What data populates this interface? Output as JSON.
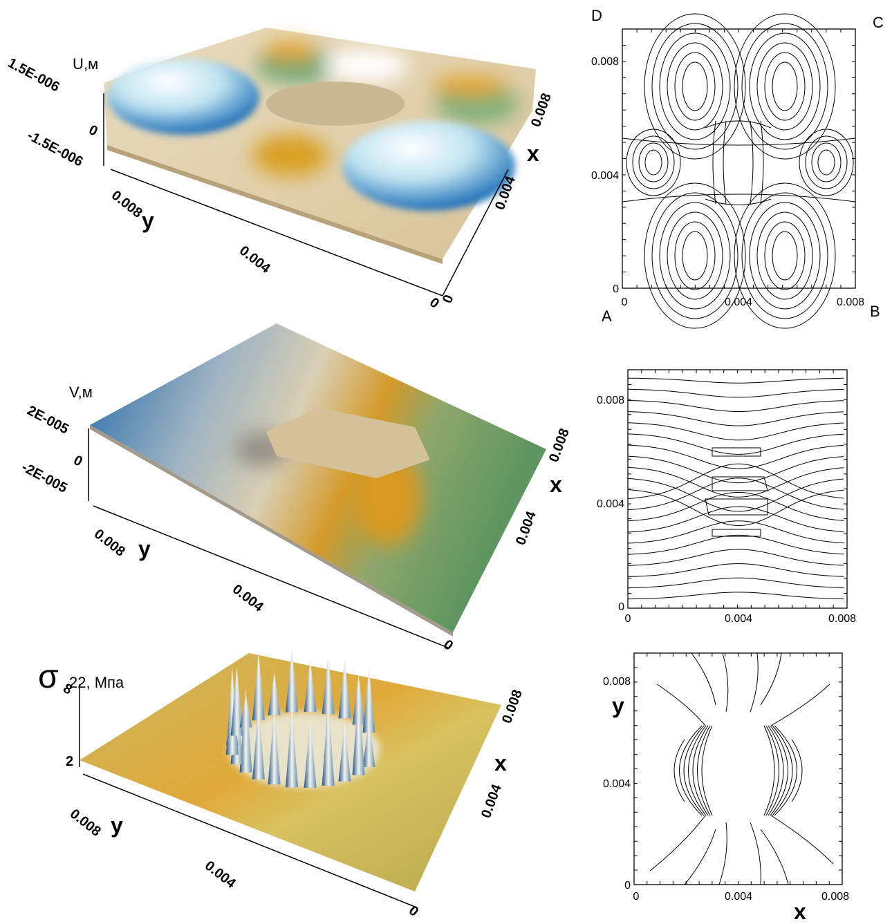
{
  "u_plot": {
    "z_label": "U,м",
    "z_ticks": [
      "1.5E-006",
      "0",
      "-1.5E-006"
    ],
    "y_axis": {
      "label": "y",
      "ticks": [
        "0.008",
        "0.004",
        "0"
      ]
    },
    "x_axis": {
      "label": "x",
      "ticks": [
        "0",
        "0.004",
        "0.008"
      ]
    }
  },
  "u_contour": {
    "corners": [
      "D",
      "C",
      "A",
      "B"
    ],
    "y_ticks": [
      "0.008",
      "0.004",
      "0"
    ],
    "x_ticks": [
      "0",
      "0.004",
      "0.008"
    ]
  },
  "v_plot": {
    "z_label": "V,м",
    "z_ticks": [
      "2E-005",
      "0",
      "-2E-005"
    ],
    "y_axis": {
      "label": "y",
      "ticks": [
        "0.008",
        "0.004",
        "0"
      ]
    },
    "x_axis": {
      "label": "x",
      "ticks": [
        "0",
        "0.004",
        "0.008"
      ]
    }
  },
  "v_contour": {
    "y_ticks": [
      "0.008",
      "0.004",
      "0"
    ],
    "x_ticks": [
      "0",
      "0.004",
      "0.008"
    ]
  },
  "s_plot": {
    "z_symbol": "σ",
    "z_label": "22, Мпа",
    "z_ticks": [
      "8",
      "2"
    ],
    "y_axis": {
      "label": "y",
      "ticks": [
        "0.008",
        "0.004",
        "0"
      ]
    },
    "x_axis": {
      "label": "x",
      "ticks": [
        "0.004",
        "0.008"
      ]
    }
  },
  "s_contour": {
    "y_label": "y",
    "x_label": "x",
    "y_ticks": [
      "0.008",
      "0.004",
      "0"
    ],
    "x_ticks": [
      "0",
      "0.004",
      "0.008"
    ]
  }
}
